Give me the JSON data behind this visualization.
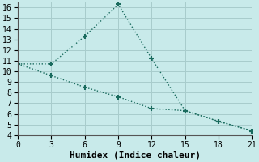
{
  "xlabel": "Humidex (Indice chaleur)",
  "line1_x": [
    0,
    3,
    6,
    9,
    12,
    15,
    18,
    21
  ],
  "line1_y": [
    10.7,
    10.7,
    13.3,
    16.3,
    11.2,
    6.3,
    5.3,
    4.4
  ],
  "line2_x": [
    0,
    3,
    6,
    9,
    12,
    15,
    18,
    21
  ],
  "line2_y": [
    10.7,
    9.6,
    8.5,
    7.6,
    6.5,
    6.3,
    5.3,
    4.4
  ],
  "line_color": "#1a6b5e",
  "bg_color": "#c8eaea",
  "grid_color": "#a8cccc",
  "xlim": [
    0,
    21
  ],
  "ylim": [
    4,
    16.5
  ],
  "xticks": [
    0,
    3,
    6,
    9,
    12,
    15,
    18,
    21
  ],
  "yticks": [
    4,
    5,
    6,
    7,
    8,
    9,
    10,
    11,
    12,
    13,
    14,
    15,
    16
  ],
  "marker": "+",
  "markersize": 5,
  "markeredgewidth": 1.5,
  "linewidth": 1.0,
  "linestyle": ":",
  "font_family": "monospace",
  "xlabel_fontsize": 8,
  "tick_fontsize": 7
}
